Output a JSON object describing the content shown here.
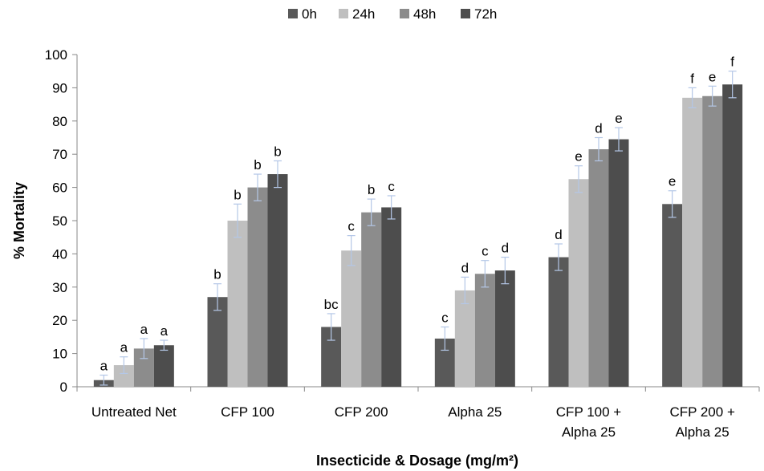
{
  "chart_data": {
    "type": "bar",
    "categories": [
      [
        "Untreated Net"
      ],
      [
        "CFP 100"
      ],
      [
        "CFP 200"
      ],
      [
        "Alpha 25"
      ],
      [
        "CFP 100 +",
        "Alpha 25"
      ],
      [
        "CFP 200 +",
        "Alpha 25"
      ]
    ],
    "series": [
      {
        "name": "0h",
        "color": "#595959",
        "values": [
          2,
          27,
          18,
          14.5,
          39,
          55
        ],
        "errors": [
          1.5,
          4,
          4,
          3.5,
          4,
          4
        ],
        "labels": [
          "a",
          "b",
          "bc",
          "c",
          "d",
          "e"
        ]
      },
      {
        "name": "24h",
        "color": "#bfbfbf",
        "values": [
          6.5,
          50,
          41,
          29,
          62.5,
          87
        ],
        "errors": [
          2.5,
          5,
          4.5,
          4,
          4,
          3
        ],
        "labels": [
          "a",
          "b",
          "c",
          "d",
          "e",
          "f"
        ]
      },
      {
        "name": "48h",
        "color": "#8c8c8c",
        "values": [
          11.5,
          60,
          52.5,
          34,
          71.5,
          87.5
        ],
        "errors": [
          3,
          4,
          4,
          4,
          3.5,
          3
        ],
        "labels": [
          "a",
          "b",
          "b",
          "c",
          "d",
          "e"
        ]
      },
      {
        "name": "72h",
        "color": "#4d4d4d",
        "values": [
          12.5,
          64,
          54,
          35,
          74.5,
          91
        ],
        "errors": [
          1.5,
          4,
          3.5,
          4,
          3.5,
          4
        ],
        "labels": [
          "a",
          "b",
          "c",
          "d",
          "e",
          "f"
        ]
      }
    ],
    "xlabel": "Insecticide & Dosage (mg/m²)",
    "ylabel": "% Mortality",
    "ylim": [
      0,
      100
    ],
    "yticks": [
      0,
      10,
      20,
      30,
      40,
      50,
      60,
      70,
      80,
      90,
      100
    ],
    "error_bar_color": "#b4c7e7",
    "legend_position": "top",
    "grid": false
  }
}
